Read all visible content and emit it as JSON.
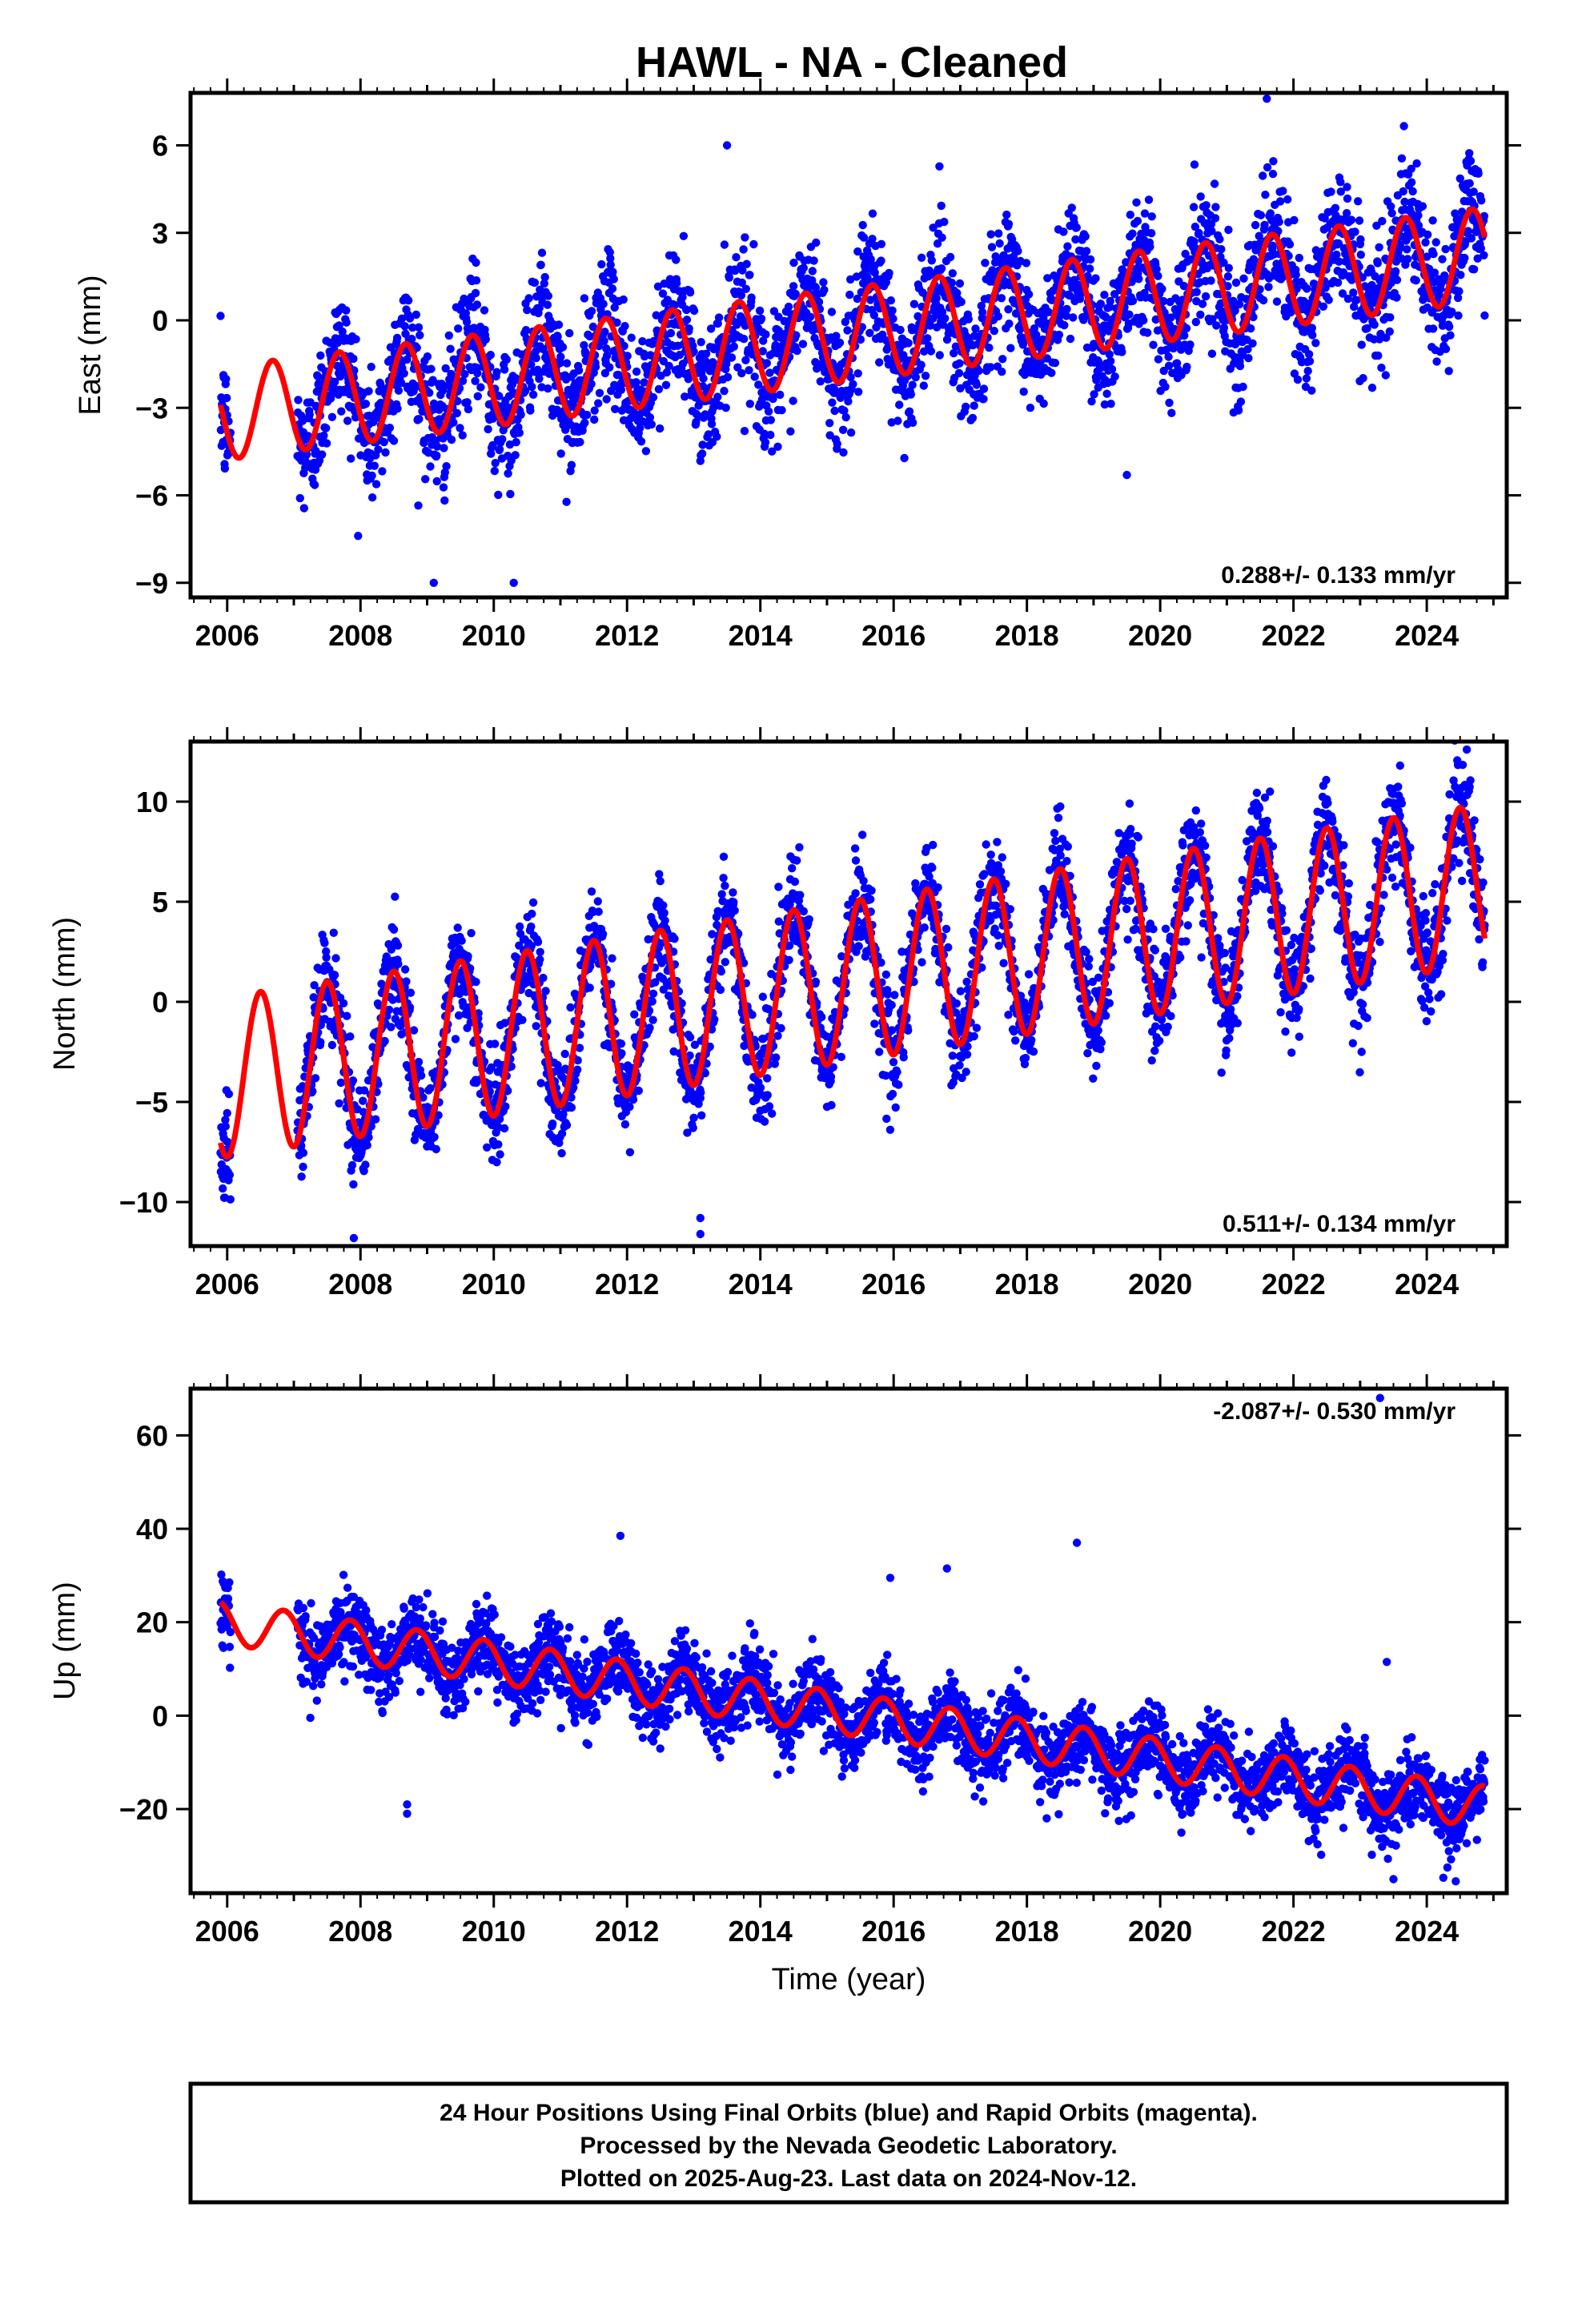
{
  "figure": {
    "title": "HAWL  - NA - Cleaned",
    "footer_lines": [
      "24 Hour Positions Using Final Orbits (blue) and Rapid Orbits (magenta).",
      "Processed by the Nevada Geodetic Laboratory.",
      "Plotted on 2025-Aug-23. Last data on 2024-Nov-12."
    ]
  },
  "chart_data": [
    {
      "type": "scatter",
      "component": "east",
      "ylabel": "East (mm)",
      "xlabel": "",
      "rate_label": "0.288+/- 0.133 mm/yr",
      "xlim": [
        2005.45,
        2025.2
      ],
      "ylim": [
        -9.5,
        7.8
      ],
      "yticks": [
        -9,
        -6,
        -3,
        0,
        3,
        6
      ],
      "xticks": [
        2006,
        2008,
        2010,
        2012,
        2014,
        2016,
        2018,
        2020,
        2022,
        2024
      ],
      "data_start": 2005.9,
      "data_end": 2024.87,
      "gap": [
        2006.05,
        2007.05
      ],
      "model": {
        "offset": -3.2,
        "rate": 0.288,
        "amp": 1.6,
        "phase_peak": 0.68
      },
      "scatter_sd": 1.1,
      "outliers": [
        [
          2009.1,
          -9.0
        ],
        [
          2010.3,
          -9.0
        ],
        [
          2019.5,
          -5.3
        ],
        [
          2021.6,
          7.6
        ],
        [
          2013.5,
          6.0
        ]
      ],
      "series_colors": {
        "final": "#0000ff",
        "model": "#ff0000"
      }
    },
    {
      "type": "scatter",
      "component": "north",
      "ylabel": "North (mm)",
      "xlabel": "",
      "rate_label": "0.511+/- 0.134 mm/yr",
      "xlim": [
        2005.45,
        2025.2
      ],
      "ylim": [
        -12.2,
        13.0
      ],
      "yticks": [
        -10,
        -5,
        0,
        5,
        10
      ],
      "xticks": [
        2006,
        2008,
        2010,
        2012,
        2014,
        2016,
        2018,
        2020,
        2022,
        2024
      ],
      "data_start": 2005.9,
      "data_end": 2024.87,
      "gap": [
        2006.05,
        2007.05
      ],
      "model": {
        "offset": -3.8,
        "rate": 0.511,
        "amp": 4.0,
        "phase_peak": 0.5
      },
      "scatter_sd": 1.3,
      "outliers": [
        [
          2007.9,
          -11.8
        ],
        [
          2013.1,
          -11.6
        ],
        [
          2013.1,
          -10.8
        ],
        [
          2024.6,
          12.6
        ],
        [
          2023.6,
          11.8
        ]
      ],
      "series_colors": {
        "final": "#0000ff",
        "model": "#ff0000"
      }
    },
    {
      "type": "scatter",
      "component": "up",
      "ylabel": "Up (mm)",
      "xlabel": "Time (year)",
      "rate_label": "-2.087+/- 0.530 mm/yr",
      "xlim": [
        2005.45,
        2025.2
      ],
      "ylim": [
        -38,
        70
      ],
      "yticks": [
        -20,
        0,
        20,
        40,
        60
      ],
      "xticks": [
        2006,
        2008,
        2010,
        2012,
        2014,
        2016,
        2018,
        2020,
        2022,
        2024
      ],
      "data_start": 2005.9,
      "data_end": 2024.87,
      "gap": [
        2006.05,
        2007.05
      ],
      "model": {
        "offset": 20.0,
        "rate": -2.087,
        "amp": 4.5,
        "phase_peak": 0.85
      },
      "scatter_sd": 4.0,
      "outliers": [
        [
          2008.7,
          -21.0
        ],
        [
          2008.7,
          -19.0
        ],
        [
          2018.75,
          37.0
        ],
        [
          2023.3,
          68.0
        ],
        [
          2016.8,
          31.5
        ],
        [
          2011.9,
          38.5
        ],
        [
          2015.95,
          29.5
        ],
        [
          2023.4,
          11.5
        ],
        [
          2023.5,
          -35.0
        ]
      ],
      "series_colors": {
        "final": "#0000ff",
        "model": "#ff0000"
      }
    }
  ]
}
